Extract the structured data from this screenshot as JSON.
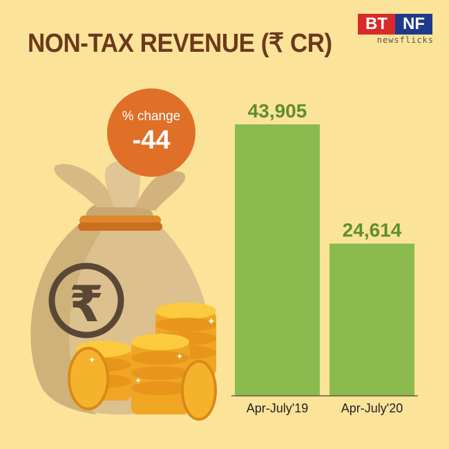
{
  "title": "NON-TAX REVENUE (₹ CR)",
  "logo": {
    "left": "BT",
    "right": "NF",
    "tagline": "newsflicks"
  },
  "badge": {
    "label": "% change",
    "value": "-44"
  },
  "colors": {
    "background": "#fbe39a",
    "bar": "#8bbb4f",
    "value_text": "#5f8e2a",
    "title": "#6b3a1c",
    "badge": "#e06f28"
  },
  "chart_data": {
    "type": "bar",
    "categories": [
      "Apr-July'19",
      "Apr-July'20"
    ],
    "values": [
      43905,
      24614
    ],
    "value_labels": [
      "43,905",
      "24,614"
    ],
    "title": "NON-TAX REVENUE (₹ CR)",
    "xlabel": "",
    "ylabel": "",
    "ylim": [
      0,
      50000
    ],
    "grid": false
  }
}
